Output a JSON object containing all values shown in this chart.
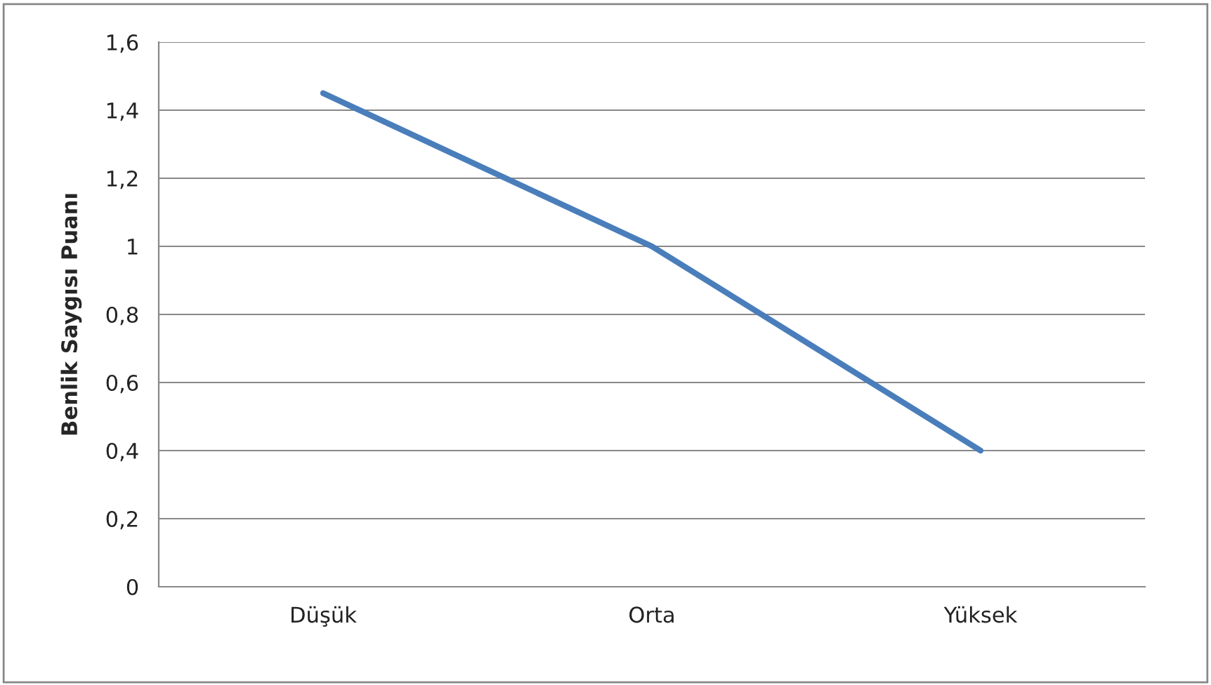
{
  "chart_data": {
    "type": "line",
    "ylabel": "Benlik Saygısı Puanı",
    "categories": [
      "Düşük",
      "Orta",
      "Yüksek"
    ],
    "series": [
      {
        "color": "#4a7ebb",
        "values": [
          1.45,
          1.0,
          0.4
        ]
      }
    ],
    "ylim": [
      0,
      1.6
    ],
    "yticks": [
      0,
      {
        "value": 0.2,
        "label": "0,2"
      },
      {
        "value": 0.4,
        "label": "0,4"
      },
      {
        "value": 0.6,
        "label": "0,6"
      },
      {
        "value": 0.8,
        "label": "0,8"
      },
      1,
      {
        "value": 1.2,
        "label": "1,2"
      },
      {
        "value": 1.4,
        "label": "1,4"
      },
      {
        "value": 1.6,
        "label": "1,6"
      }
    ],
    "grid": "y",
    "legend": false,
    "marker": "none",
    "line_style": "solid"
  }
}
